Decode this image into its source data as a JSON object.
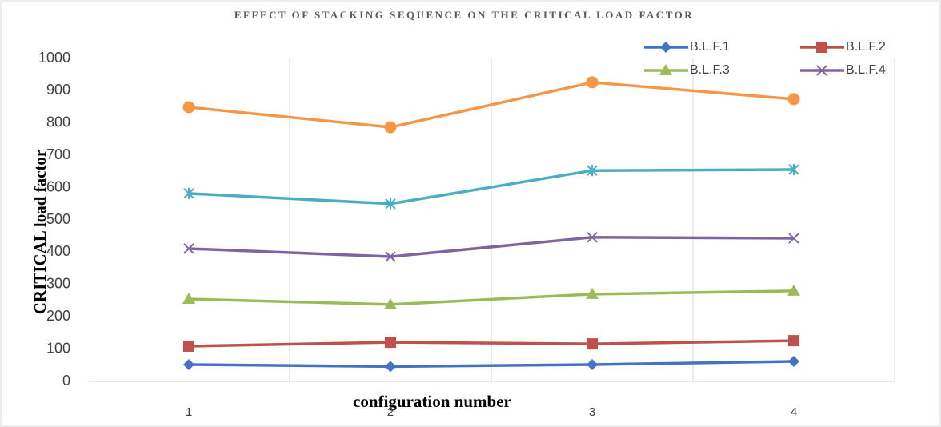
{
  "chart_data": {
    "type": "line",
    "title": "EFFECT OF STACKING SEQUENCE ON THE CRITICAL LOAD FACTOR",
    "x_label": "configuration number",
    "y_label": "CRITICAL load factor",
    "categories": [
      "1",
      "2",
      "3",
      "4"
    ],
    "series": [
      {
        "name": "B.L.F.1",
        "color": "#4472c4",
        "marker": "diamond",
        "values": [
          52,
          46,
          52,
          62
        ]
      },
      {
        "name": "B.L.F.2",
        "color": "#c0504d",
        "marker": "square",
        "values": [
          109,
          121,
          116,
          126
        ]
      },
      {
        "name": "B.L.F.3",
        "color": "#9bbb59",
        "marker": "triangle",
        "values": [
          255,
          238,
          270,
          280
        ]
      },
      {
        "name": "B.L.F.4",
        "color": "#8064a2",
        "marker": "x",
        "values": [
          411,
          386,
          446,
          443
        ]
      },
      {
        "color": "#4bacc6",
        "marker": "asterisk",
        "values": [
          582,
          550,
          653,
          656
        ]
      },
      {
        "color": "#f79646",
        "marker": "circle",
        "values": [
          849,
          787,
          926,
          874
        ]
      }
    ],
    "ylim": [
      0,
      1000
    ],
    "yticks": [
      0,
      100,
      200,
      300,
      400,
      500,
      600,
      700,
      800,
      900,
      1000
    ],
    "grid": "vertical",
    "legend": "top-right"
  }
}
